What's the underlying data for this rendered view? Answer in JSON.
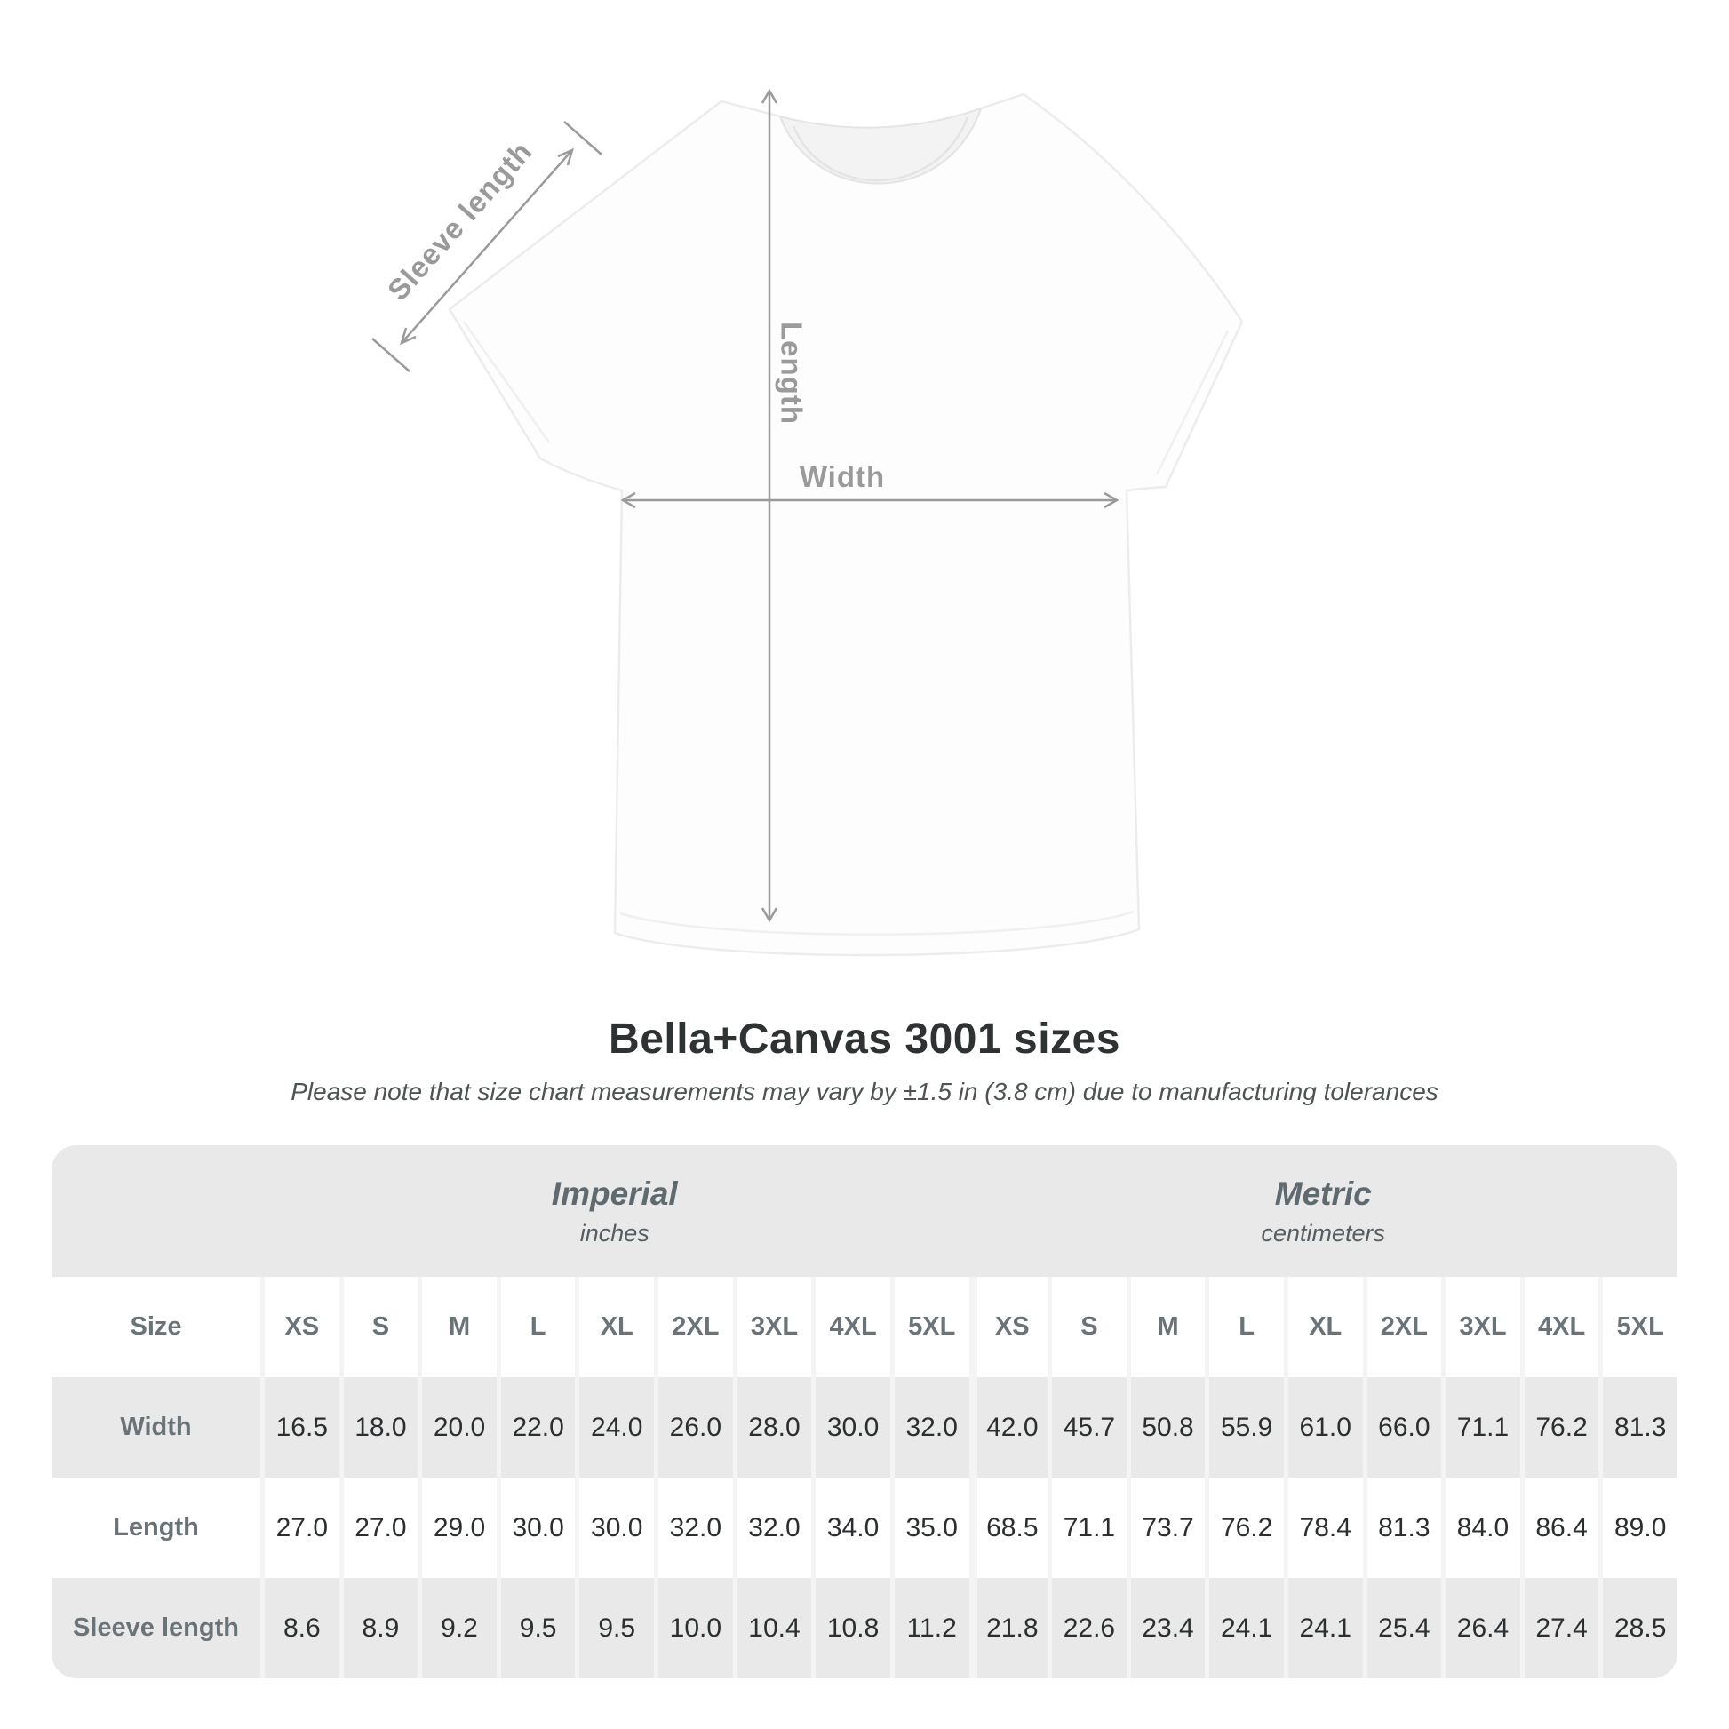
{
  "diagram": {
    "labels": {
      "sleeve_length": "Sleeve length",
      "length": "Length",
      "width": "Width"
    },
    "colors": {
      "measure_lines": "#9a9a9a",
      "measure_text": "#9a9a9a",
      "shirt_outline": "#ececec"
    }
  },
  "title": "Bella+Canvas 3001 sizes",
  "subtitle": "Please note that size chart measurements may vary by ±1.5 in (3.8 cm) due to manufacturing tolerances",
  "table": {
    "size_label": "Size",
    "unit_groups": [
      {
        "name": "Imperial",
        "unit": "inches"
      },
      {
        "name": "Metric",
        "unit": "centimeters"
      }
    ],
    "sizes": [
      "XS",
      "S",
      "M",
      "L",
      "XL",
      "2XL",
      "3XL",
      "4XL",
      "5XL"
    ],
    "rows": [
      {
        "label": "Width",
        "imperial": [
          "16.5",
          "18.0",
          "20.0",
          "22.0",
          "24.0",
          "26.0",
          "28.0",
          "30.0",
          "32.0"
        ],
        "metric": [
          "42.0",
          "45.7",
          "50.8",
          "55.9",
          "61.0",
          "66.0",
          "71.1",
          "76.2",
          "81.3"
        ]
      },
      {
        "label": "Length",
        "imperial": [
          "27.0",
          "27.0",
          "29.0",
          "30.0",
          "30.0",
          "32.0",
          "32.0",
          "34.0",
          "35.0"
        ],
        "metric": [
          "68.5",
          "71.1",
          "73.7",
          "76.2",
          "78.4",
          "81.3",
          "84.0",
          "86.4",
          "89.0"
        ]
      },
      {
        "label": "Sleeve length",
        "imperial": [
          "8.6",
          "8.9",
          "9.2",
          "9.5",
          "9.5",
          "10.0",
          "10.4",
          "10.8",
          "11.2"
        ],
        "metric": [
          "21.8",
          "22.6",
          "23.4",
          "24.1",
          "24.1",
          "25.4",
          "26.4",
          "27.4",
          "28.5"
        ]
      }
    ],
    "colors": {
      "band_background": "#e9e9e9",
      "alt_row_background": "#e9e9e9",
      "header_text": "#6a7478",
      "value_text": "#2c2f30"
    }
  },
  "chart_data": {
    "type": "table",
    "title": "Bella+Canvas 3001 sizes",
    "columns": [
      "Size",
      "XS",
      "S",
      "M",
      "L",
      "XL",
      "2XL",
      "3XL",
      "4XL",
      "5XL"
    ],
    "imperial_unit": "inches",
    "metric_unit": "centimeters",
    "rows_imperial": [
      [
        "Width",
        16.5,
        18.0,
        20.0,
        22.0,
        24.0,
        26.0,
        28.0,
        30.0,
        32.0
      ],
      [
        "Length",
        27.0,
        27.0,
        29.0,
        30.0,
        30.0,
        32.0,
        32.0,
        34.0,
        35.0
      ],
      [
        "Sleeve length",
        8.6,
        8.9,
        9.2,
        9.5,
        9.5,
        10.0,
        10.4,
        10.8,
        11.2
      ]
    ],
    "rows_metric": [
      [
        "Width",
        42.0,
        45.7,
        50.8,
        55.9,
        61.0,
        66.0,
        71.1,
        76.2,
        81.3
      ],
      [
        "Length",
        68.5,
        71.1,
        73.7,
        76.2,
        78.4,
        81.3,
        84.0,
        86.4,
        89.0
      ],
      [
        "Sleeve length",
        21.8,
        22.6,
        23.4,
        24.1,
        24.1,
        25.4,
        26.4,
        27.4,
        28.5
      ]
    ]
  }
}
